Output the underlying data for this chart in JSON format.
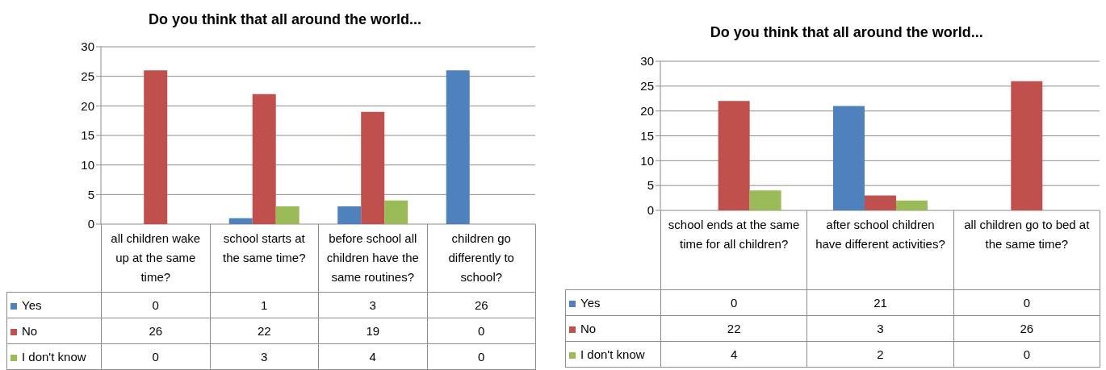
{
  "chart_data": [
    {
      "type": "bar",
      "title": "Do you think that all around the world...",
      "categories": [
        "all children wake up at the same time?",
        "school starts at the same time?",
        "before school all children have the same routines?",
        "children go differently to school?"
      ],
      "series": [
        {
          "name": "Yes",
          "color": "#4f81bd",
          "values": [
            0,
            1,
            3,
            26
          ]
        },
        {
          "name": "No",
          "color": "#c0504d",
          "values": [
            26,
            22,
            19,
            0
          ]
        },
        {
          "name": "I don't know",
          "color": "#9bbb59",
          "values": [
            0,
            3,
            4,
            0
          ]
        }
      ],
      "ylim": [
        0,
        30
      ],
      "yticks": [
        0,
        5,
        10,
        15,
        20,
        25,
        30
      ],
      "grid": "y",
      "legend": "bottom",
      "data_labels": true
    },
    {
      "type": "bar",
      "title": "Do you think that all around the world...",
      "categories": [
        "school ends at the same time for all children?",
        "after school children have different activities?",
        "all children go to bed at the same time?"
      ],
      "series": [
        {
          "name": "Yes",
          "color": "#4f81bd",
          "values": [
            0,
            21,
            0
          ]
        },
        {
          "name": "No",
          "color": "#c0504d",
          "values": [
            22,
            3,
            26
          ]
        },
        {
          "name": "I don't know",
          "color": "#9bbb59",
          "values": [
            4,
            2,
            0
          ]
        }
      ],
      "ylim": [
        0,
        30
      ],
      "yticks": [
        0,
        5,
        10,
        15,
        20,
        25,
        30
      ],
      "grid": "y",
      "legend": "bottom",
      "data_labels": true
    }
  ]
}
